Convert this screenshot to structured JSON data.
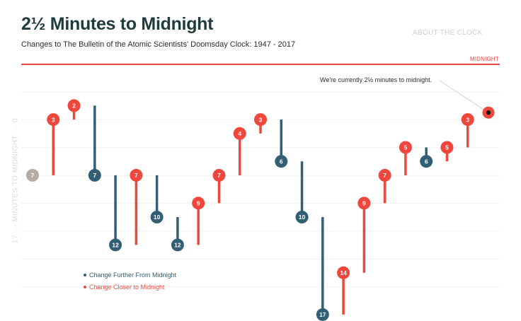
{
  "header": {
    "title": "2½ Minutes to Midnight",
    "subtitle": "Changes to The Bulletin of the Atomic Scientists' Doomsday Clock: 1947 - 2017",
    "nav_about": "ABOUT THE CLOCK",
    "midnight_label": "MIDNIGHT"
  },
  "annotation": "We're currently 2½ minutes to midnight.",
  "yaxis": {
    "label": "17 ··· MINUTES TO MIDNIGHT ··· 0"
  },
  "legend": {
    "further": "Change Further From Midnight",
    "closer": "Change Closer to Midnight"
  },
  "colors": {
    "further": "#335f75",
    "closer": "#f0473c",
    "initial": "#b6aca4",
    "text_further": "#335f75",
    "text_closer": "#f0473c"
  },
  "chart_data": {
    "type": "lollipop",
    "ylabel": "MINUTES TO MIDNIGHT",
    "ylim": [
      17,
      0
    ],
    "points": [
      {
        "from": 7,
        "to": 7,
        "label": "7",
        "kind": "initial"
      },
      {
        "from": 7,
        "to": 3,
        "label": "3",
        "kind": "closer"
      },
      {
        "from": 3,
        "to": 2,
        "label": "2",
        "kind": "closer"
      },
      {
        "from": 2,
        "to": 7,
        "label": "7",
        "kind": "further"
      },
      {
        "from": 7,
        "to": 12,
        "label": "12",
        "kind": "further"
      },
      {
        "from": 12,
        "to": 7,
        "label": "7",
        "kind": "closer"
      },
      {
        "from": 7,
        "to": 10,
        "label": "10",
        "kind": "further"
      },
      {
        "from": 10,
        "to": 12,
        "label": "12",
        "kind": "further"
      },
      {
        "from": 12,
        "to": 9,
        "label": "9",
        "kind": "closer"
      },
      {
        "from": 9,
        "to": 7,
        "label": "7",
        "kind": "closer"
      },
      {
        "from": 7,
        "to": 4,
        "label": "4",
        "kind": "closer"
      },
      {
        "from": 4,
        "to": 3,
        "label": "3",
        "kind": "closer"
      },
      {
        "from": 3,
        "to": 6,
        "label": "6",
        "kind": "further"
      },
      {
        "from": 6,
        "to": 10,
        "label": "10",
        "kind": "further"
      },
      {
        "from": 10,
        "to": 17,
        "label": "17",
        "kind": "further"
      },
      {
        "from": 17,
        "to": 14,
        "label": "14",
        "kind": "closer"
      },
      {
        "from": 14,
        "to": 9,
        "label": "9",
        "kind": "closer"
      },
      {
        "from": 9,
        "to": 7,
        "label": "7",
        "kind": "closer"
      },
      {
        "from": 7,
        "to": 5,
        "label": "5",
        "kind": "closer"
      },
      {
        "from": 5,
        "to": 6,
        "label": "6",
        "kind": "further"
      },
      {
        "from": 6,
        "to": 5,
        "label": "5",
        "kind": "closer"
      },
      {
        "from": 5,
        "to": 3,
        "label": "3",
        "kind": "closer"
      },
      {
        "from": 3,
        "to": 2.5,
        "label": "",
        "kind": "current"
      }
    ]
  }
}
